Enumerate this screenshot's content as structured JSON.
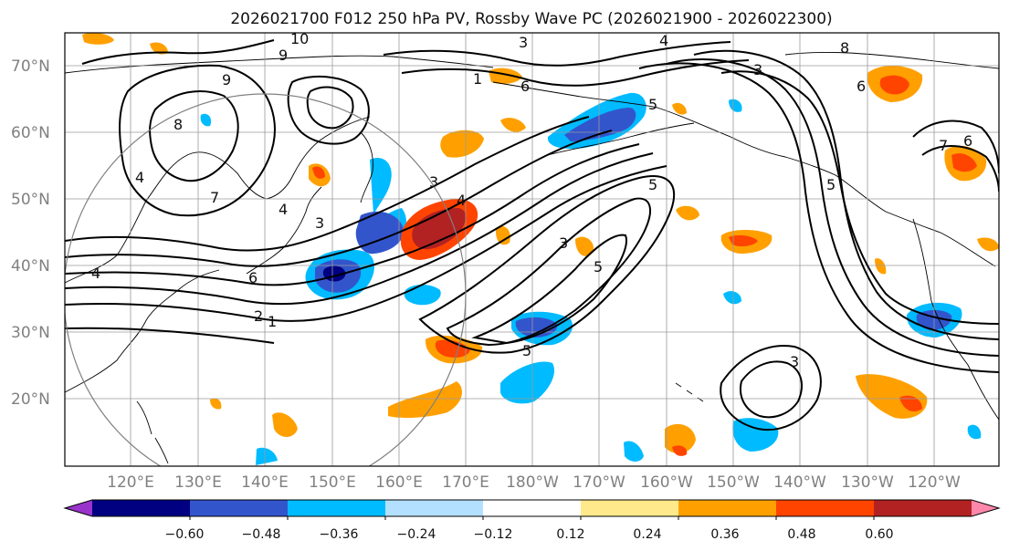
{
  "title": "2026021700 F012 250 hPa PV, Rossby Wave PC (2026021900 - 2026022300)",
  "lat_labels": [
    "70°N",
    "60°N",
    "50°N",
    "40°N",
    "30°N",
    "20°N"
  ],
  "lon_labels": [
    "120°E",
    "130°E",
    "140°E",
    "150°E",
    "160°E",
    "170°E",
    "180°W",
    "170°W",
    "160°W",
    "150°W",
    "140°W",
    "130°W",
    "120°W"
  ],
  "colorbar": {
    "ticks": [
      "−0.60",
      "−0.48",
      "−0.36",
      "−0.24",
      "−0.12",
      "0.12",
      "0.24",
      "0.36",
      "0.48",
      "0.60"
    ],
    "colors": [
      "#9933cc",
      "#000080",
      "#3355cc",
      "#00bbff",
      "#b3e0ff",
      "#ffffff",
      "#ffe98a",
      "#ffa000",
      "#ff4400",
      "#b22222",
      "#ff88aa"
    ]
  },
  "pv_contour_labels": [
    "10",
    "9",
    "3",
    "4",
    "8",
    "3",
    "6",
    "6",
    "5",
    "5",
    "4",
    "3",
    "2",
    "1",
    "7",
    "1",
    "5",
    "6",
    "8",
    "9",
    "7",
    "4",
    "4",
    "3",
    "3",
    "5",
    "5",
    "4",
    "3",
    "6"
  ],
  "colors": {
    "positive_strong": "#b22222",
    "positive": "#ff4400",
    "positive_light": "#ffa000",
    "negative_light": "#00bbff",
    "negative": "#3355cc",
    "negative_strong": "#000080"
  }
}
